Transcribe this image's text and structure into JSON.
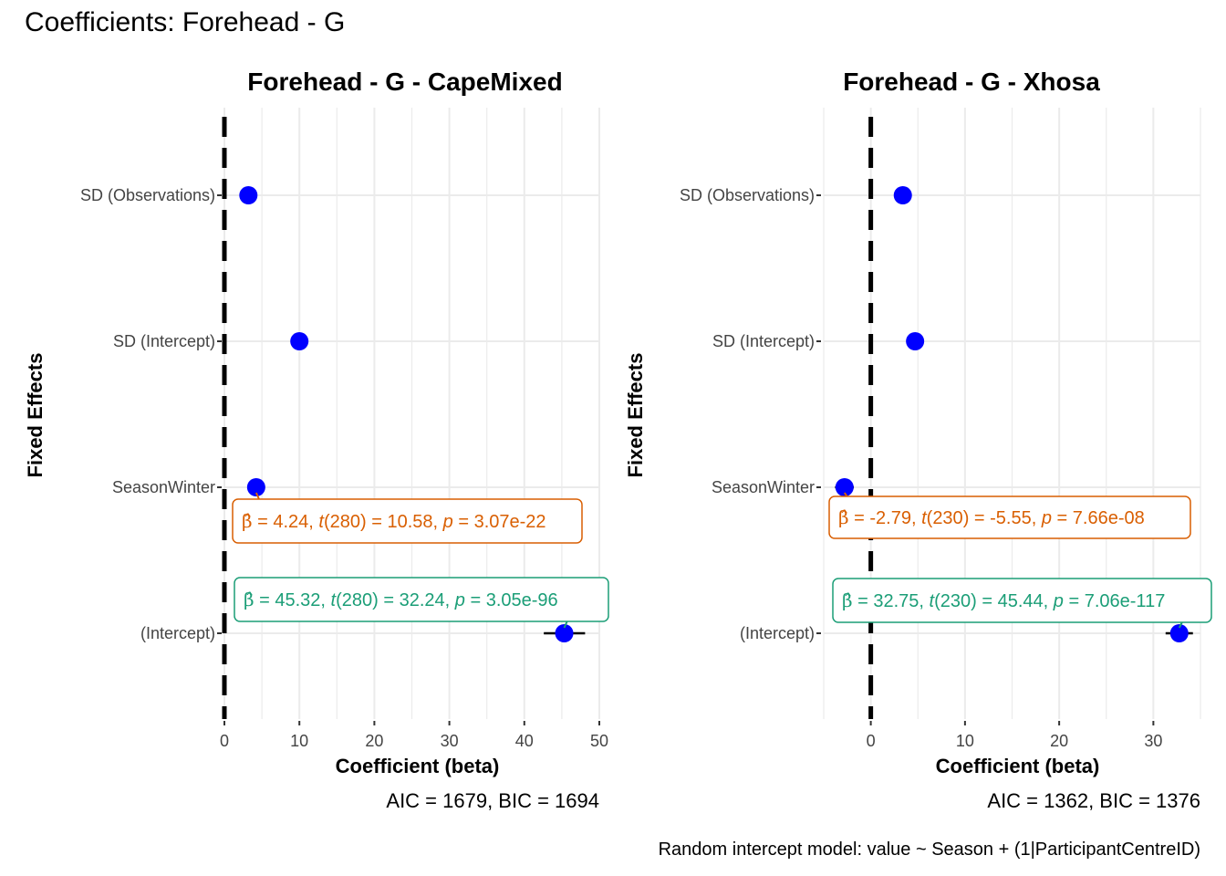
{
  "figure": {
    "title": "Coefficients: Forehead - G",
    "caption": "Random intercept model: value ~ Season + (1|ParticipantCentreID)"
  },
  "colors": {
    "point": "#0000ff",
    "season_label": "#d95f02",
    "intercept_label": "#1b9e77",
    "reference_line": "#000000",
    "grid": "#ebebeb"
  },
  "chart_data": [
    {
      "type": "scatter",
      "title": "Forehead - G - CapeMixed",
      "xlabel": "Coefficient (beta)",
      "ylabel": "Fixed Effects",
      "fit_stats": "AIC = 1679, BIC = 1694",
      "xlim": [
        0,
        50
      ],
      "xticks": [
        0,
        10,
        20,
        30,
        40,
        50
      ],
      "reference_x": 0,
      "grid": true,
      "categories": [
        "SD (Observations)",
        "SD (Intercept)",
        "SeasonWinter",
        "(Intercept)"
      ],
      "points": [
        {
          "term": "SD (Observations)",
          "estimate": 3.2
        },
        {
          "term": "SD (Intercept)",
          "estimate": 10.0
        },
        {
          "term": "SeasonWinter",
          "estimate": 4.24,
          "ci": [
            3.4,
            5.1
          ],
          "label": {
            "beta": "4.24",
            "df": "280",
            "t": "10.58",
            "p": "3.07e-22"
          }
        },
        {
          "term": "(Intercept)",
          "estimate": 45.32,
          "ci": [
            42.6,
            48.1
          ],
          "label": {
            "beta": "45.32",
            "df": "280",
            "t": "32.24",
            "p": "3.05e-96"
          }
        }
      ]
    },
    {
      "type": "scatter",
      "title": "Forehead - G - Xhosa",
      "xlabel": "Coefficient (beta)",
      "ylabel": "Fixed Effects",
      "fit_stats": "AIC = 1362, BIC = 1376",
      "xlim": [
        -5,
        35
      ],
      "xticks": [
        0,
        10,
        20,
        30
      ],
      "reference_x": 0,
      "grid": true,
      "categories": [
        "SD (Observations)",
        "SD (Intercept)",
        "SeasonWinter",
        "(Intercept)"
      ],
      "points": [
        {
          "term": "SD (Observations)",
          "estimate": 3.4
        },
        {
          "term": "SD (Intercept)",
          "estimate": 4.7
        },
        {
          "term": "SeasonWinter",
          "estimate": -2.79,
          "ci": [
            -3.8,
            -1.8
          ],
          "label": {
            "beta": "-2.79",
            "df": "230",
            "t": "-5.55",
            "p": "7.66e-08"
          }
        },
        {
          "term": "(Intercept)",
          "estimate": 32.75,
          "ci": [
            31.3,
            34.2
          ],
          "label": {
            "beta": "32.75",
            "df": "230",
            "t": "45.44",
            "p": "7.06e-117"
          }
        }
      ]
    }
  ]
}
